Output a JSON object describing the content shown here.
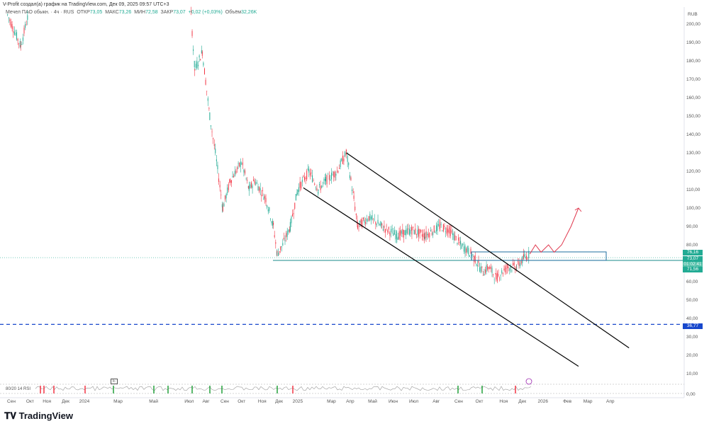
{
  "header": {
    "credit": "V-Profit создал(а) график на TradingView.com, Дек 09, 2025 09:57 UTC+3",
    "symbol": "Мечел ПАО обыкн. · 4ч · RUS",
    "open_label": "ОТКР",
    "open": "73,05",
    "high_label": "МАКС",
    "high": "73,26",
    "low_label": "МИН",
    "low": "72,58",
    "close_label": "ЗАКР",
    "close": "73,07",
    "change": "+0,02 (+0,03%)",
    "volume_label": "Объём",
    "volume": "32,26K"
  },
  "currency": "RUB",
  "price_labels": {
    "box_top": "76,16",
    "last": "73,07",
    "countdown": "01:02:41",
    "box_bottom": "71,56",
    "target": "36,77"
  },
  "indicator": {
    "label": "80/20 14 RSI",
    "badge": "E",
    "zero": "0,00"
  },
  "brand": "TradingView",
  "colors": {
    "up": "#22ab94",
    "down": "#f23645",
    "target": "#1848cc",
    "arrow": "#e0394f"
  },
  "chart_data": {
    "type": "line",
    "title": "Мечел ПАО обыкн. 4ч",
    "ylabel": "RUB",
    "ylim": [
      0,
      205
    ],
    "yticks": [
      "200,00",
      "190,00",
      "180,00",
      "170,00",
      "160,00",
      "150,00",
      "140,00",
      "130,00",
      "120,00",
      "110,00",
      "100,00",
      "90,00",
      "80,00",
      "60,00",
      "50,00",
      "40,00",
      "30,00",
      "20,00",
      "10,00"
    ],
    "ytick_values": [
      200,
      190,
      180,
      170,
      160,
      150,
      140,
      130,
      120,
      110,
      100,
      90,
      80,
      60,
      50,
      40,
      30,
      20,
      10
    ],
    "xticks": [
      {
        "label": "Сен",
        "t": 0
      },
      {
        "label": "Окт",
        "t": 1
      },
      {
        "label": "Ноя",
        "t": 1.9
      },
      {
        "label": "Дек",
        "t": 2.9
      },
      {
        "label": "2024",
        "t": 3.9
      },
      {
        "label": "Мар",
        "t": 5.7
      },
      {
        "label": "Май",
        "t": 7.6
      },
      {
        "label": "Июл",
        "t": 9.5
      },
      {
        "label": "Авг",
        "t": 10.4
      },
      {
        "label": "Сен",
        "t": 11.4
      },
      {
        "label": "Окт",
        "t": 12.3
      },
      {
        "label": "Ноя",
        "t": 13.4
      },
      {
        "label": "Дек",
        "t": 14.3
      },
      {
        "label": "2025",
        "t": 15.3
      },
      {
        "label": "Мар",
        "t": 17.1
      },
      {
        "label": "Апр",
        "t": 18.1
      },
      {
        "label": "Май",
        "t": 19.3
      },
      {
        "label": "Июн",
        "t": 20.4
      },
      {
        "label": "Июл",
        "t": 21.5
      },
      {
        "label": "Авг",
        "t": 22.7
      },
      {
        "label": "Сен",
        "t": 23.9
      },
      {
        "label": "Окт",
        "t": 25.0
      },
      {
        "label": "Ноя",
        "t": 26.3
      },
      {
        "label": "Дек",
        "t": 27.3
      },
      {
        "label": "2026",
        "t": 28.4
      },
      {
        "label": "Фев",
        "t": 29.7
      },
      {
        "label": "Мар",
        "t": 30.8
      },
      {
        "label": "Апр",
        "t": 32.0
      }
    ],
    "series": [
      {
        "name": "price",
        "t": [
          -0.2,
          0.5,
          0.9,
          9.6,
          9.8,
          10.2,
          10.6,
          10.9,
          11.3,
          11.7,
          12.3,
          12.7,
          13.0,
          13.6,
          14.0,
          14.2,
          14.5,
          14.9,
          15.3,
          15.9,
          16.4,
          16.8,
          17.4,
          17.9,
          18.3,
          18.5,
          19.1,
          19.8,
          20.6,
          21.4,
          22.1,
          22.9,
          23.4,
          24.0,
          24.6,
          25.2,
          25.5,
          25.9,
          26.5,
          27.0,
          27.4,
          27.7
        ],
        "values": [
          205,
          188,
          205,
          205,
          175,
          185,
          150,
          130,
          100,
          115,
          125,
          110,
          115,
          105,
          90,
          75,
          80,
          90,
          110,
          120,
          110,
          115,
          120,
          130,
          105,
          90,
          95,
          90,
          85,
          88,
          85,
          90,
          88,
          80,
          75,
          65,
          68,
          62,
          68,
          68,
          73,
          75
        ]
      }
    ],
    "levels": {
      "support": 71.56,
      "resistance": 76.16,
      "target": 36.77,
      "last": 73.07
    },
    "channel": {
      "upper": [
        [
          17.9,
          130
        ],
        [
          33.0,
          24
        ]
      ],
      "lower": [
        [
          15.6,
          111
        ],
        [
          30.3,
          14
        ]
      ]
    },
    "projection": [
      [
        27.7,
        75
      ],
      [
        28.0,
        80
      ],
      [
        28.3,
        76
      ],
      [
        28.7,
        80
      ],
      [
        29.0,
        76
      ],
      [
        29.4,
        80
      ],
      [
        29.9,
        90
      ],
      [
        30.3,
        100
      ]
    ]
  }
}
